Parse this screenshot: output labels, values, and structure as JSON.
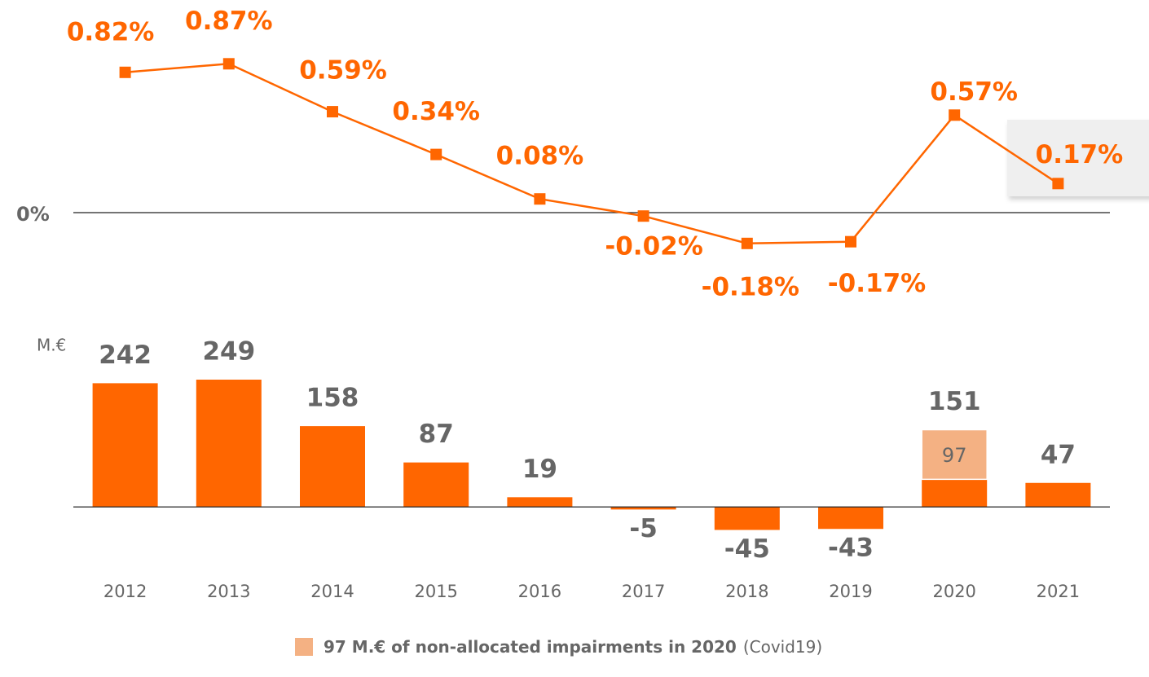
{
  "chart_data": [
    {
      "type": "line",
      "categories": [
        "2012",
        "2013",
        "2014",
        "2015",
        "2016",
        "2017",
        "2018",
        "2019",
        "2020",
        "2021"
      ],
      "values": [
        0.82,
        0.87,
        0.59,
        0.34,
        0.08,
        -0.02,
        -0.18,
        -0.17,
        0.57,
        0.17
      ],
      "value_labels": [
        "0.82%",
        "0.87%",
        "0.59%",
        "0.34%",
        "0.08%",
        "-0.02%",
        "-0.18%",
        "-0.17%",
        "0.57%",
        "0.17%"
      ],
      "color": "#ff6600",
      "ylim": [
        -0.3,
        1.0
      ],
      "yticks": [
        {
          "value": 0,
          "label": "0%"
        }
      ]
    },
    {
      "type": "bar",
      "unit_label": "M.€",
      "categories": [
        "2012",
        "2013",
        "2014",
        "2015",
        "2016",
        "2017",
        "2018",
        "2019",
        "2020",
        "2021"
      ],
      "series": [
        {
          "color": "#ff6600",
          "values": [
            242,
            249,
            158,
            87,
            19,
            -5,
            -45,
            -43,
            54,
            47
          ]
        },
        {
          "name": "97 M.€ of non-allocated impairments in 2020",
          "color": "#f4b183",
          "values": [
            null,
            null,
            null,
            null,
            null,
            null,
            null,
            null,
            97,
            null
          ]
        }
      ],
      "data_labels": [
        242,
        249,
        158,
        87,
        19,
        -5,
        -45,
        -43,
        151,
        47
      ],
      "legend_note": "(Covid19)",
      "ylim": [
        -100,
        300
      ]
    }
  ]
}
